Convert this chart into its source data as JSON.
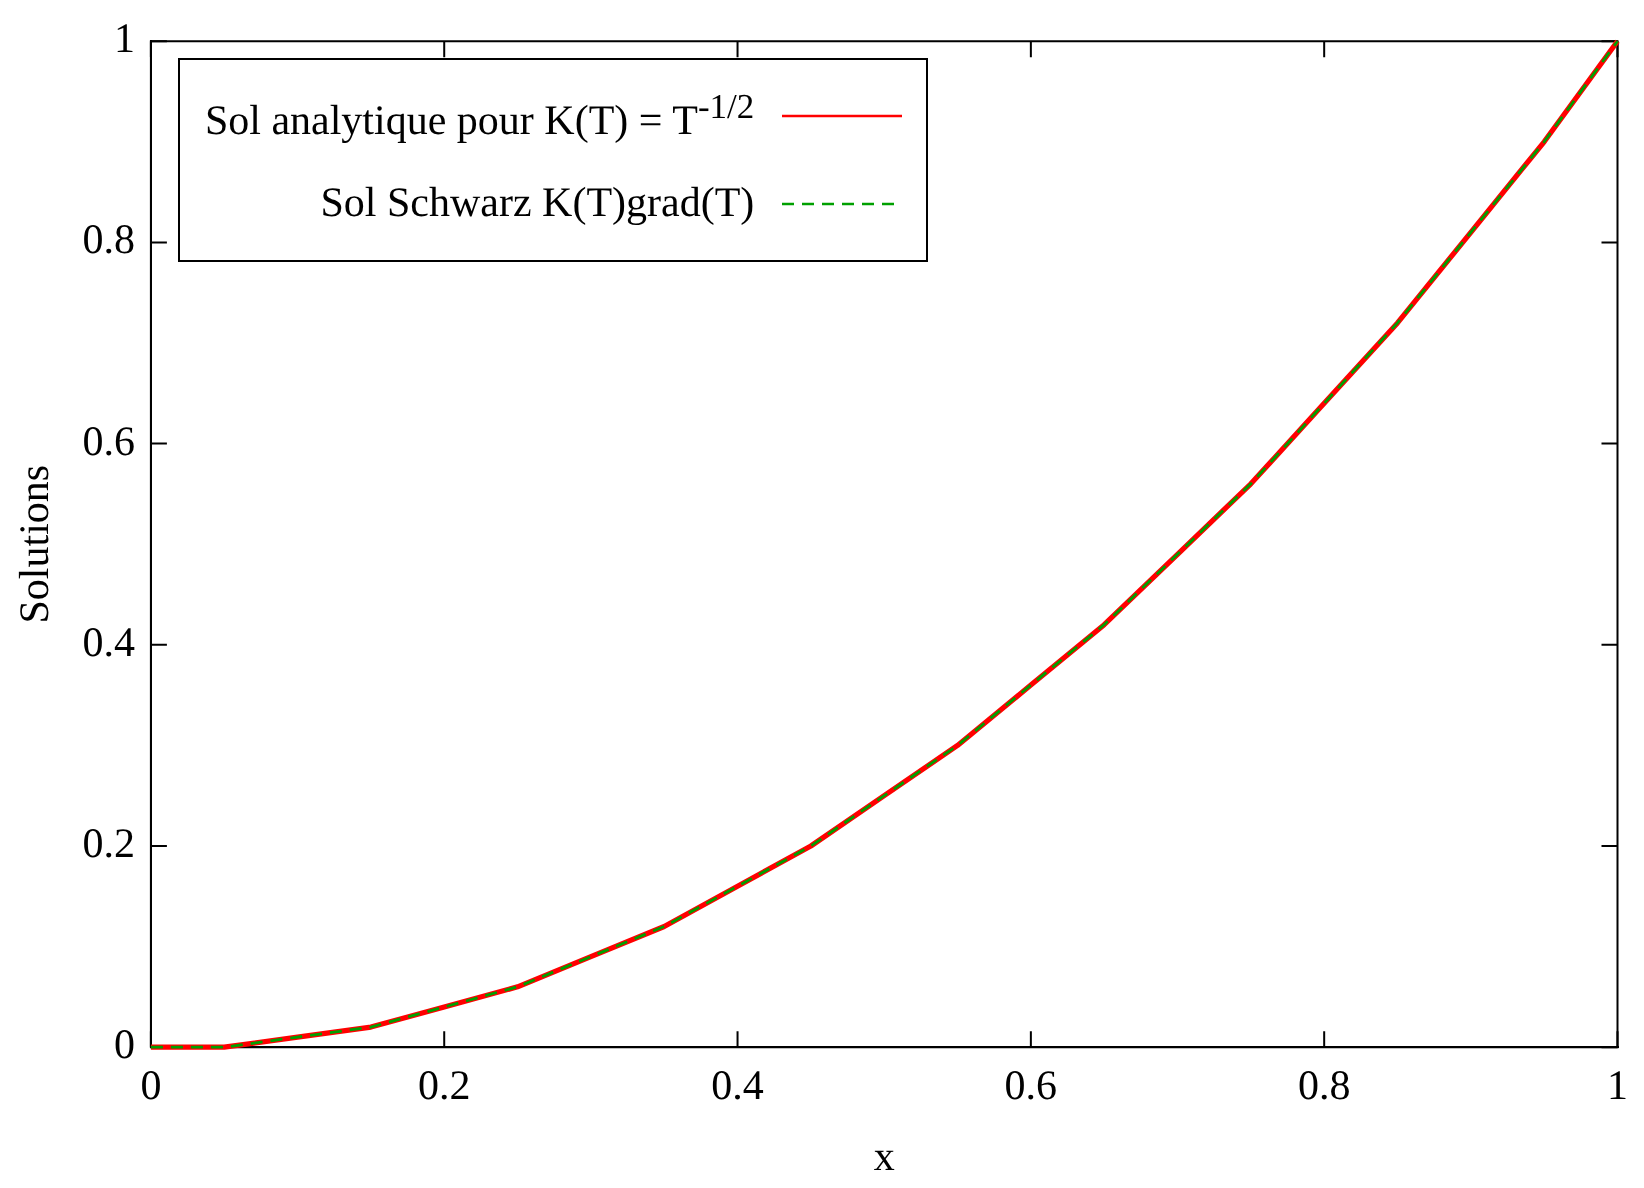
{
  "chart_data": {
    "type": "line",
    "xlabel": "x",
    "ylabel": "Solutions",
    "xlim": [
      0,
      1
    ],
    "ylim": [
      0,
      1
    ],
    "xticks": [
      0,
      0.2,
      0.4,
      0.6,
      0.8,
      1
    ],
    "yticks": [
      0,
      0.2,
      0.4,
      0.6,
      0.8,
      1
    ],
    "grid": false,
    "legend": "top left",
    "x": [
      0,
      0.05,
      0.1,
      0.15,
      0.2,
      0.25,
      0.3,
      0.35,
      0.4,
      0.45,
      0.5,
      0.55,
      0.6,
      0.65,
      0.7,
      0.75,
      0.8,
      0.85,
      0.9,
      0.95,
      1
    ],
    "series": [
      {
        "name": "Sol analytique pour K(T) = T$^{-1/2}$",
        "color": "#ff0000",
        "line_style": "solid",
        "values": [
          0,
          0,
          0.01,
          0.02,
          0.04,
          0.06,
          0.09,
          0.12,
          0.16,
          0.2,
          0.25,
          0.3,
          0.36,
          0.42,
          0.49,
          0.56,
          0.64,
          0.72,
          0.81,
          0.9,
          1
        ]
      },
      {
        "name": "Sol Schwarz K(T)grad(T)",
        "color": "#00a000",
        "line_style": "dashed",
        "values": [
          0,
          0,
          0.01,
          0.02,
          0.04,
          0.06,
          0.09,
          0.12,
          0.16,
          0.2,
          0.25,
          0.3,
          0.36,
          0.42,
          0.49,
          0.56,
          0.64,
          0.72,
          0.81,
          0.9,
          1
        ]
      }
    ]
  }
}
